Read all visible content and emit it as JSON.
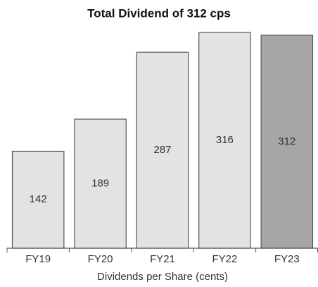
{
  "chart_data": {
    "type": "bar",
    "title": "Total Dividend of 312 cps",
    "x_label": "Dividends per Share (cents)",
    "categories": [
      "FY19",
      "FY20",
      "FY21",
      "FY22",
      "FY23"
    ],
    "values": [
      142,
      189,
      287,
      316,
      312
    ],
    "colors": [
      "#e3e3e3",
      "#e3e3e3",
      "#e3e3e3",
      "#e3e3e3",
      "#a6a6a6"
    ]
  }
}
